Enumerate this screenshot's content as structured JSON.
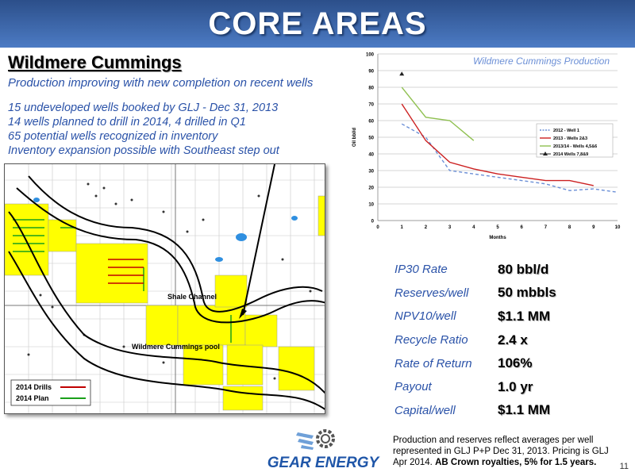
{
  "header": {
    "title": "CORE AREAS"
  },
  "section": {
    "title": "Wildmere Cummings",
    "tagline": "Production improving with new completion on recent wells"
  },
  "bullets": [
    "15 undeveloped wells booked by GLJ - Dec 31, 2013",
    "14 wells planned to drill in 2014, 4 drilled in Q1",
    "65 potential wells recognized in inventory",
    "Inventory expansion possible with Southeast step out"
  ],
  "map": {
    "labels": {
      "shale": "Shale Channel",
      "pool": "Wildmere Cummings pool"
    },
    "legend": [
      {
        "label": "2014 Drills",
        "color": "#c00000"
      },
      {
        "label": "2014 Plan",
        "color": "#1aa01a"
      }
    ]
  },
  "chart_data": {
    "type": "line",
    "title": "Wildmere Cummings Production",
    "xlabel": "Months",
    "ylabel": "Oil bbl/d",
    "xlim": [
      0,
      10
    ],
    "ylim": [
      0,
      100
    ],
    "xticks": [
      0,
      1,
      2,
      3,
      4,
      5,
      6,
      7,
      8,
      9,
      10
    ],
    "yticks": [
      0,
      10,
      20,
      30,
      40,
      50,
      60,
      70,
      80,
      90,
      100
    ],
    "grid": "horizontal",
    "legend_position": "right",
    "series": [
      {
        "name": "2012 - Well 1",
        "color": "#6b8fd6",
        "dash": "4,3",
        "x": [
          1,
          2,
          3,
          4,
          5,
          6,
          7,
          8,
          9,
          10
        ],
        "y": [
          58,
          50,
          30,
          28,
          26,
          24,
          22,
          18,
          19,
          17
        ]
      },
      {
        "name": "2013 - Wells 2&3",
        "color": "#cc2020",
        "dash": "",
        "x": [
          1,
          2,
          3,
          4,
          5,
          6,
          7,
          8,
          9
        ],
        "y": [
          70,
          48,
          35,
          31,
          28,
          26,
          24,
          24,
          21
        ]
      },
      {
        "name": "2013/14 - Wells 4,5&6",
        "color": "#8fc050",
        "dash": "",
        "x": [
          1,
          2,
          3,
          4
        ],
        "y": [
          80,
          62,
          60,
          48
        ]
      },
      {
        "name": "2014 Wells 7,8&9",
        "color": "#222222",
        "dash": "",
        "x": [
          1
        ],
        "y": [
          88
        ],
        "marker": "triangle"
      }
    ]
  },
  "metrics": [
    {
      "label": "IP30 Rate",
      "value": "80 bbl/d"
    },
    {
      "label": "Reserves/well",
      "value": "50 mbbls"
    },
    {
      "label": "NPV10/well",
      "value": "$1.1 MM"
    },
    {
      "label": "Recycle Ratio",
      "value": "2.4 x"
    },
    {
      "label": "Rate of Return",
      "value": "106%"
    },
    {
      "label": "Payout",
      "value": "1.0 yr"
    },
    {
      "label": "Capital/well",
      "value": "$1.1 MM"
    }
  ],
  "footnote": {
    "text": "Production and reserves reflect averages per well represented in GLJ P+P Dec 31, 2013. Pricing is GLJ Apr 2014. ",
    "bold": "AB Crown royalties, 5% for 1.5 years."
  },
  "logo": {
    "text": "GEAR ENERGY",
    "colors": {
      "primary": "#1f56a8",
      "accent": "#6fa0d8"
    }
  },
  "page": {
    "number": "11"
  }
}
